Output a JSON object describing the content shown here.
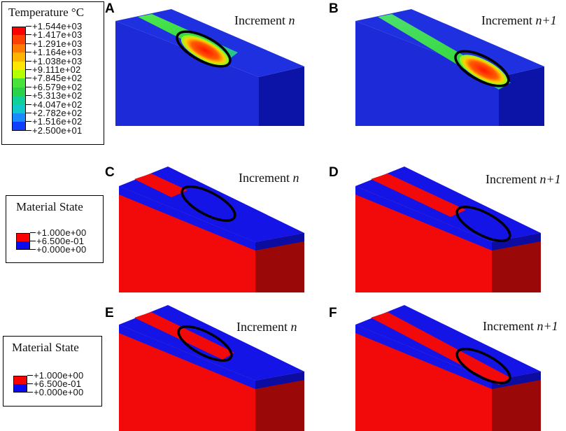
{
  "temperature_legend": {
    "title": "Temperature °C",
    "values": [
      "+1.544e+03",
      "+1.417e+03",
      "+1.291e+03",
      "+1.164e+03",
      "+1.038e+03",
      "+9.111e+02",
      "+7.845e+02",
      "+6.579e+02",
      "+5.313e+02",
      "+4.047e+02",
      "+2.782e+02",
      "+1.516e+02",
      "+2.500e+01"
    ],
    "colors": [
      "#ff0000",
      "#ff4000",
      "#ff7a00",
      "#ffb400",
      "#ffe600",
      "#b4ff00",
      "#48e23a",
      "#2ad24a",
      "#10d09a",
      "#10c8c8",
      "#1a8aff",
      "#1040ff"
    ]
  },
  "material_legend_1": {
    "title": "Material State",
    "values": [
      "+1.000e+00",
      "+6.500e-01",
      "+0.000e+00"
    ],
    "colors": [
      "#ff0000",
      "#0a0af0"
    ]
  },
  "material_legend_2": {
    "title": "Material State",
    "values": [
      "+1.000e+00",
      "+6.500e-01",
      "+0.000e+00"
    ],
    "colors": [
      "#ff0000",
      "#0a0af0"
    ]
  },
  "panels": [
    {
      "letter": "A",
      "label": "Increment",
      "suffix": "n"
    },
    {
      "letter": "B",
      "label": "Increment",
      "suffix": "n+1"
    },
    {
      "letter": "C",
      "label": "Increment",
      "suffix": "n"
    },
    {
      "letter": "D",
      "label": "Increment",
      "suffix": "n+1"
    },
    {
      "letter": "E",
      "label": "Increment",
      "suffix": "n"
    },
    {
      "letter": "F",
      "label": "Increment",
      "suffix": "n+1"
    }
  ],
  "colors": {
    "block_blue": "#1f28d8",
    "side_blue_dark": "#0c14a8",
    "material_red": "#f20a0a",
    "material_red_dark": "#9a0808",
    "material_blue": "#1414e6",
    "hot_red": "#ff2000",
    "track_green": "#3ce040",
    "outline": "#000000"
  }
}
